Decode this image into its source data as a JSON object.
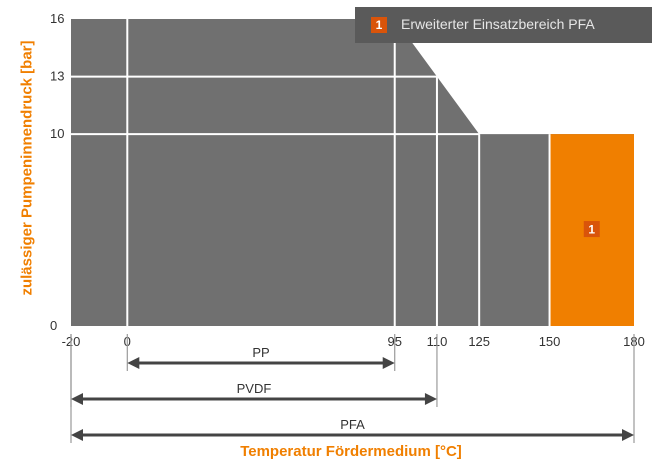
{
  "chart_data": {
    "type": "area",
    "xlabel": "Temperatur Fördermedium [°C]",
    "ylabel": "zulässiger Pumpeninnendruck [bar]",
    "xlim": [
      -20,
      180
    ],
    "ylim": [
      0,
      16
    ],
    "x_ticks": [
      "-20",
      "0",
      "95",
      "110",
      "125",
      "150",
      "180"
    ],
    "y_ticks": [
      "0",
      "10",
      "13",
      "16"
    ],
    "envelope": {
      "x": [
        -20,
        95,
        125,
        180
      ],
      "y": [
        16,
        16,
        10,
        10
      ]
    },
    "extended_region": {
      "x_range": [
        150,
        180
      ],
      "y_max": 10,
      "marker": "1"
    },
    "ranges": [
      {
        "name": "PP",
        "from": 0,
        "to": 95
      },
      {
        "name": "PVDF",
        "from": -20,
        "to": 110
      },
      {
        "name": "PFA",
        "from": -20,
        "to": 180
      }
    ],
    "legend": [
      {
        "marker": "1",
        "label": "Erweiterter Einsatzbereich PFA"
      }
    ],
    "grid": true,
    "legend_position": "top-right"
  },
  "colors": {
    "area": "#707070",
    "grid": "#ffffff",
    "accent": "#f07f00",
    "marker": "#d9540a",
    "legend_bg": "#5a5a5a",
    "arrow": "#444444"
  }
}
